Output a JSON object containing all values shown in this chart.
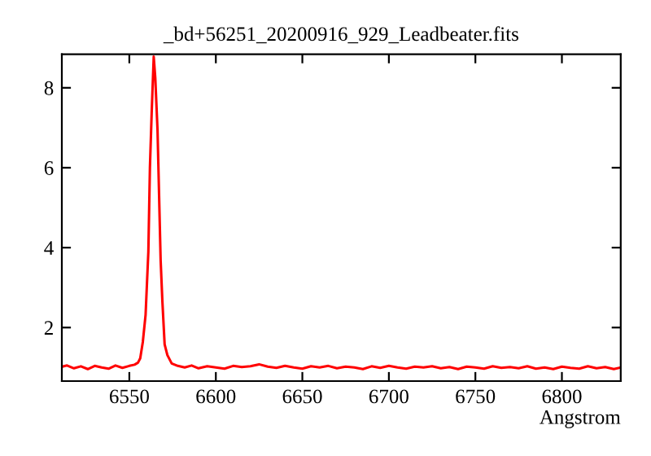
{
  "chart_data": {
    "type": "line",
    "title": "_bd+56251_20200916_929_Leadbeater.fits",
    "xlabel": "Angstrom",
    "x": [
      6511,
      6514,
      6518,
      6522,
      6526,
      6530,
      6534,
      6538,
      6542,
      6546,
      6550,
      6553,
      6555,
      6556.3,
      6557.8,
      6559.4,
      6561,
      6561.9,
      6562.9,
      6564.1,
      6565,
      6566.3,
      6567.2,
      6568.1,
      6569.1,
      6570.4,
      6572,
      6574.5,
      6578,
      6582,
      6586,
      6590,
      6595,
      6600,
      6605,
      6610,
      6615,
      6620,
      6625,
      6630,
      6635,
      6640,
      6645,
      6650,
      6655,
      6660,
      6665,
      6670,
      6675,
      6680,
      6685,
      6690,
      6695,
      6700,
      6705,
      6710,
      6715,
      6720,
      6725,
      6730,
      6735,
      6740,
      6745,
      6750,
      6755,
      6760,
      6765,
      6770,
      6775,
      6780,
      6785,
      6790,
      6795,
      6800,
      6805,
      6810,
      6815,
      6820,
      6825,
      6830,
      6834
    ],
    "series": [
      {
        "color": "#ff0000",
        "values": [
          1.02,
          1.05,
          0.98,
          1.03,
          0.96,
          1.04,
          1.0,
          0.97,
          1.05,
          0.99,
          1.04,
          1.07,
          1.12,
          1.23,
          1.64,
          2.32,
          3.9,
          6.0,
          7.35,
          8.78,
          8.25,
          6.94,
          5.31,
          3.68,
          2.66,
          1.58,
          1.31,
          1.1,
          1.04,
          1.0,
          1.05,
          0.98,
          1.03,
          1.0,
          0.97,
          1.04,
          1.01,
          1.03,
          1.08,
          1.02,
          0.99,
          1.04,
          1.0,
          0.97,
          1.03,
          1.0,
          1.04,
          0.98,
          1.02,
          1.0,
          0.96,
          1.03,
          0.99,
          1.04,
          1.0,
          0.97,
          1.02,
          1.0,
          1.03,
          0.98,
          1.01,
          0.96,
          1.02,
          1.0,
          0.97,
          1.03,
          0.99,
          1.01,
          0.98,
          1.03,
          0.97,
          1.0,
          0.96,
          1.02,
          0.99,
          0.97,
          1.03,
          0.98,
          1.01,
          0.96,
          1.0
        ]
      }
    ],
    "xlim": [
      6511,
      6834
    ],
    "ylim": [
      0.66,
      8.84
    ],
    "xticks": [
      6550,
      6600,
      6650,
      6700,
      6750,
      6800
    ],
    "yticks": [
      2,
      4,
      6,
      8
    ],
    "grid": false,
    "legend": false,
    "marker": "none",
    "line_style": "solid"
  }
}
